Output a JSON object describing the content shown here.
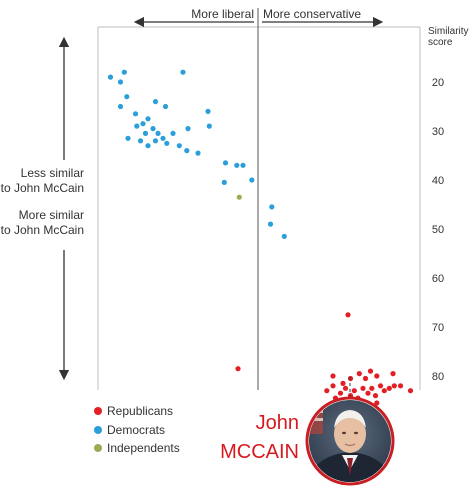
{
  "chart_data": {
    "type": "scatter",
    "title": "",
    "xlabel": "",
    "ylabel": "Similarity score",
    "ylabel_lines": [
      "Similarity",
      "score"
    ],
    "x_direction_labels": {
      "left": "More liberal",
      "right": "More conservative"
    },
    "side_labels": {
      "up": [
        "Less similar",
        "to John McCain"
      ],
      "down": [
        "More similar",
        "to John McCain"
      ]
    },
    "y_ticks": [
      20,
      30,
      40,
      50,
      60,
      70,
      80
    ],
    "ylim": [
      87,
      17
    ],
    "xlim": [
      -1.25,
      1.25
    ],
    "grid": false,
    "legend_position": "bottom-left",
    "series": [
      {
        "name": "Republicans",
        "color": "#e31e24",
        "points": [
          [
            0.72,
            67.5
          ],
          [
            -0.16,
            78.5
          ],
          [
            0.6,
            80.0
          ],
          [
            0.68,
            81.5
          ],
          [
            0.74,
            80.5
          ],
          [
            0.81,
            79.5
          ],
          [
            0.86,
            80.5
          ],
          [
            0.9,
            79.0
          ],
          [
            0.95,
            80.0
          ],
          [
            1.08,
            79.5
          ],
          [
            0.55,
            83.0
          ],
          [
            0.6,
            82.0
          ],
          [
            0.66,
            83.5
          ],
          [
            0.7,
            82.5
          ],
          [
            0.74,
            84.0
          ],
          [
            0.77,
            83.0
          ],
          [
            0.8,
            84.5
          ],
          [
            0.62,
            84.5
          ],
          [
            0.67,
            85.5
          ],
          [
            0.71,
            85.0
          ],
          [
            0.84,
            82.5
          ],
          [
            0.88,
            83.5
          ],
          [
            0.91,
            82.5
          ],
          [
            0.94,
            84.0
          ],
          [
            0.98,
            82.0
          ],
          [
            1.01,
            83.0
          ],
          [
            1.05,
            82.5
          ],
          [
            1.09,
            82.0
          ],
          [
            1.14,
            82.0
          ],
          [
            1.22,
            83.0
          ],
          [
            0.78,
            86.0
          ],
          [
            0.86,
            85.5
          ],
          [
            0.95,
            85.5
          ]
        ]
      },
      {
        "name": "Democrats",
        "color": "#2b9fd9",
        "points": [
          [
            -1.18,
            19.0
          ],
          [
            -1.1,
            20.0
          ],
          [
            -1.07,
            18.0
          ],
          [
            -0.6,
            18.0
          ],
          [
            -1.05,
            23.0
          ],
          [
            -0.98,
            26.5
          ],
          [
            -1.1,
            25.0
          ],
          [
            -0.82,
            24.0
          ],
          [
            -0.74,
            25.0
          ],
          [
            -0.4,
            26.0
          ],
          [
            -0.97,
            29.0
          ],
          [
            -0.92,
            28.5
          ],
          [
            -0.88,
            27.5
          ],
          [
            -0.9,
            30.5
          ],
          [
            -0.84,
            29.5
          ],
          [
            -0.8,
            30.5
          ],
          [
            -0.76,
            31.5
          ],
          [
            -0.68,
            30.5
          ],
          [
            -1.04,
            31.5
          ],
          [
            -0.94,
            32.0
          ],
          [
            -0.88,
            33.0
          ],
          [
            -0.82,
            32.0
          ],
          [
            -0.73,
            32.5
          ],
          [
            -0.63,
            33.0
          ],
          [
            -0.56,
            29.5
          ],
          [
            -0.39,
            29.0
          ],
          [
            -0.57,
            34.0
          ],
          [
            -0.48,
            34.5
          ],
          [
            -0.26,
            36.5
          ],
          [
            -0.17,
            37.0
          ],
          [
            -0.12,
            37.0
          ],
          [
            -0.27,
            40.5
          ],
          [
            -0.05,
            40.0
          ],
          [
            0.11,
            45.5
          ],
          [
            0.1,
            49.0
          ],
          [
            0.21,
            51.5
          ]
        ]
      },
      {
        "name": "Independents",
        "color": "#9aac4f",
        "points": [
          [
            -0.15,
            43.5
          ]
        ]
      }
    ],
    "highlight": {
      "first_name": "John",
      "last_name": "MCCAIN",
      "color": "#d7191f"
    }
  }
}
